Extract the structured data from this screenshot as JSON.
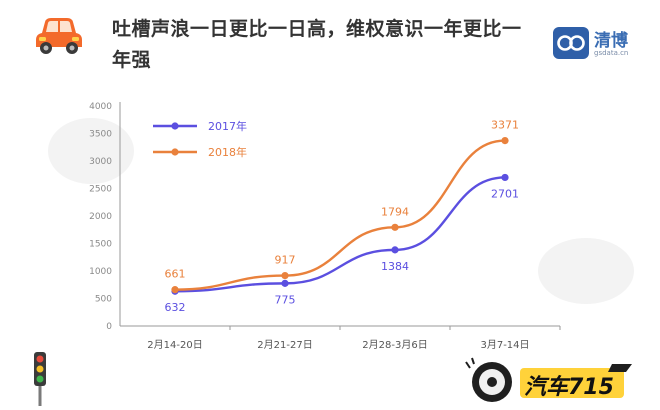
{
  "header": {
    "title": "吐槽声浪一日更比一日高，维权意识一年更比一年强",
    "brand_name": "清博",
    "brand_url": "gsdata.cn",
    "car_icon": "car-icon",
    "brand_icon": "qingbo-logo-icon"
  },
  "footer": {
    "logo_text": "汽车715",
    "traffic_icon": "traffic-light-icon"
  },
  "colors": {
    "series_2017": "#5b4fe0",
    "series_2018": "#e9813c",
    "axis": "#9a9a9a",
    "car": "#f36a2b"
  },
  "chart_data": {
    "type": "line",
    "categories": [
      "2月14-20日",
      "2月21-27日",
      "2月28-3月6日",
      "3月7-14日"
    ],
    "ylim": [
      0,
      4000
    ],
    "yticks": [
      "0",
      "500",
      "1000",
      "1500",
      "2000",
      "2500",
      "3000",
      "3500",
      "4000"
    ],
    "legend_position": "top-left",
    "grid": false,
    "series": [
      {
        "name": "2017年",
        "values": [
          632,
          775,
          1384,
          2701
        ],
        "labels": [
          "632",
          "775",
          "1384",
          "2701"
        ]
      },
      {
        "name": "2018年",
        "values": [
          661,
          917,
          1794,
          3371
        ],
        "labels": [
          "661",
          "917",
          "1794",
          "3371"
        ]
      }
    ]
  }
}
